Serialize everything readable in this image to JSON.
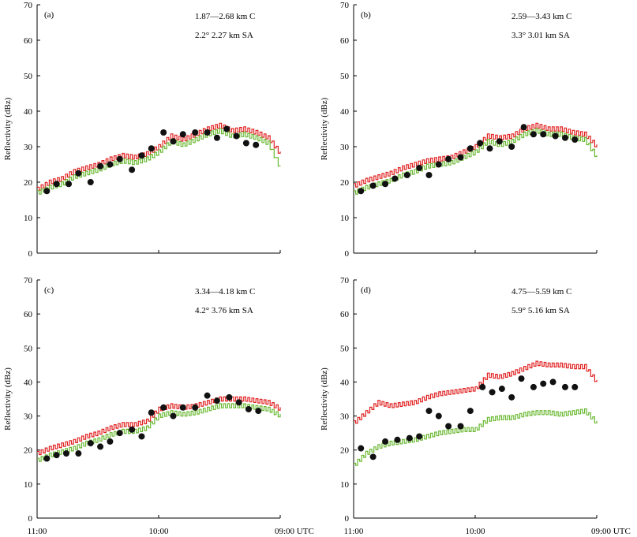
{
  "colors": {
    "c_band": "#e02020",
    "sa_band": "#6ab832",
    "points": "#111111"
  },
  "chart_data": [
    {
      "type": "line",
      "panel_label": "(a)",
      "legend_c_range": "1.87—2.68 km C",
      "legend_sa": "2.2°  2.27 km SA",
      "ylabel": "Reflectivity (dBz)",
      "ylim": [
        0,
        70
      ],
      "yticks": [
        "0",
        "10",
        "20",
        "30",
        "40",
        "50",
        "60",
        "70"
      ],
      "xticks": [
        "11:00",
        "10:00",
        "09:00"
      ],
      "xtick_labels": [
        "11:00",
        "10:00",
        "09:00 UTC"
      ],
      "x_unit": "UTC",
      "series": [
        {
          "name": "C",
          "x": [
            0,
            0.05,
            0.1,
            0.15,
            0.2,
            0.25,
            0.3,
            0.35,
            0.4,
            0.45,
            0.5,
            0.55,
            0.6,
            0.65,
            0.7,
            0.75,
            0.8,
            0.85,
            0.9,
            0.95,
            1.0
          ],
          "values": [
            18,
            20,
            21,
            23,
            24,
            25,
            26.5,
            27.5,
            27,
            28,
            30,
            33,
            32,
            33.5,
            35,
            36,
            34.5,
            35,
            34,
            32.5,
            28
          ]
        },
        {
          "name": "SA",
          "x": [
            0,
            0.05,
            0.1,
            0.15,
            0.2,
            0.25,
            0.3,
            0.35,
            0.4,
            0.45,
            0.5,
            0.55,
            0.6,
            0.65,
            0.7,
            0.75,
            0.8,
            0.85,
            0.9,
            0.95,
            1.0
          ],
          "values": [
            17,
            18.5,
            19.5,
            21.5,
            22.5,
            23.5,
            25,
            26,
            25.5,
            26.5,
            28.5,
            31.5,
            30.5,
            32,
            33.5,
            34.5,
            33,
            33.5,
            32.5,
            31,
            24
          ]
        },
        {
          "name": "points",
          "x": [
            0.04,
            0.08,
            0.13,
            0.17,
            0.22,
            0.26,
            0.3,
            0.34,
            0.39,
            0.43,
            0.47,
            0.52,
            0.56,
            0.6,
            0.65,
            0.7,
            0.74,
            0.78,
            0.82,
            0.86,
            0.9
          ],
          "values": [
            17.5,
            19.5,
            19.5,
            22.5,
            20,
            24.5,
            25,
            26.5,
            23.5,
            27.5,
            29.5,
            34,
            31.5,
            33.5,
            34,
            34,
            32.5,
            35,
            33,
            31,
            30.5
          ]
        }
      ]
    },
    {
      "type": "line",
      "panel_label": "(b)",
      "legend_c_range": "2.59—3.43 km C",
      "legend_sa": "3.3°  3.01 km SA",
      "ylabel": "Reflectivity (dBz)",
      "ylim": [
        0,
        70
      ],
      "yticks": [
        "0",
        "10",
        "20",
        "30",
        "40",
        "50",
        "60",
        "70"
      ],
      "xticks": [
        "11:00",
        "10:00",
        "09:00"
      ],
      "xtick_labels": [
        "11:00",
        "10:00",
        "09:00 UTC"
      ],
      "x_unit": "UTC",
      "series": [
        {
          "name": "C",
          "x": [
            0,
            0.05,
            0.1,
            0.15,
            0.2,
            0.25,
            0.3,
            0.35,
            0.4,
            0.45,
            0.5,
            0.55,
            0.6,
            0.65,
            0.7,
            0.75,
            0.8,
            0.85,
            0.9,
            0.95,
            1.0
          ],
          "values": [
            19,
            20.5,
            21.5,
            22.5,
            24,
            25,
            26,
            26.5,
            27,
            28.5,
            30,
            33,
            32.5,
            33,
            35,
            36,
            35,
            35,
            34,
            33.5,
            30
          ]
        },
        {
          "name": "SA",
          "x": [
            0,
            0.05,
            0.1,
            0.15,
            0.2,
            0.25,
            0.3,
            0.35,
            0.4,
            0.45,
            0.5,
            0.55,
            0.6,
            0.65,
            0.7,
            0.75,
            0.8,
            0.85,
            0.9,
            0.95,
            1.0
          ],
          "values": [
            17,
            18.5,
            19.5,
            20.5,
            22,
            23,
            24.5,
            25,
            25.5,
            27,
            28.5,
            31.5,
            30.5,
            31.5,
            33.5,
            34.5,
            33.5,
            33.5,
            32.5,
            32,
            27
          ]
        },
        {
          "name": "points",
          "x": [
            0.03,
            0.08,
            0.13,
            0.17,
            0.22,
            0.27,
            0.31,
            0.35,
            0.39,
            0.44,
            0.48,
            0.52,
            0.56,
            0.6,
            0.65,
            0.7,
            0.74,
            0.78,
            0.83,
            0.87,
            0.91
          ],
          "values": [
            17.5,
            19,
            19.5,
            21,
            22,
            24,
            22,
            25,
            26.5,
            27,
            29.5,
            31,
            29.5,
            31.5,
            30,
            35.5,
            33.5,
            33.5,
            33,
            32.5,
            32
          ]
        }
      ]
    },
    {
      "type": "line",
      "panel_label": "(c)",
      "legend_c_range": "3.34—4.18 km C",
      "legend_sa": "4.2°  3.76 km SA",
      "ylabel": "Reflectivity (dBz)",
      "ylim": [
        0,
        70
      ],
      "yticks": [
        "0",
        "10",
        "20",
        "30",
        "40",
        "50",
        "60",
        "70"
      ],
      "xticks": [
        "11:00",
        "10:00",
        "09:00"
      ],
      "xtick_labels": [
        "11:00",
        "10:00",
        "09:00 UTC"
      ],
      "x_unit": "UTC",
      "series": [
        {
          "name": "C",
          "x": [
            0,
            0.05,
            0.1,
            0.15,
            0.2,
            0.25,
            0.3,
            0.35,
            0.4,
            0.45,
            0.5,
            0.55,
            0.6,
            0.65,
            0.7,
            0.75,
            0.8,
            0.85,
            0.9,
            0.95,
            1.0
          ],
          "values": [
            19,
            20.5,
            21.5,
            22.5,
            24,
            25,
            26.5,
            27.5,
            27.5,
            28.5,
            32,
            33,
            32.5,
            33,
            34,
            35,
            35,
            35,
            34.5,
            34,
            32
          ]
        },
        {
          "name": "SA",
          "x": [
            0,
            0.05,
            0.1,
            0.15,
            0.2,
            0.25,
            0.3,
            0.35,
            0.4,
            0.45,
            0.5,
            0.55,
            0.6,
            0.65,
            0.7,
            0.75,
            0.8,
            0.85,
            0.9,
            0.95,
            1.0
          ],
          "values": [
            17,
            18.5,
            19.5,
            20.5,
            22,
            23,
            24.5,
            25.5,
            25.5,
            26.5,
            30,
            31,
            30.5,
            31,
            32,
            33,
            33,
            33,
            32.5,
            32,
            30
          ]
        },
        {
          "name": "points",
          "x": [
            0.04,
            0.08,
            0.12,
            0.17,
            0.22,
            0.26,
            0.3,
            0.34,
            0.39,
            0.43,
            0.47,
            0.52,
            0.56,
            0.6,
            0.65,
            0.7,
            0.74,
            0.79,
            0.83,
            0.87,
            0.91
          ],
          "values": [
            17.5,
            18.5,
            19,
            19,
            22,
            21,
            22.5,
            25,
            26,
            24,
            31,
            32.5,
            30,
            32.5,
            32.5,
            36,
            34.5,
            35.5,
            34,
            32,
            31.5
          ]
        }
      ]
    },
    {
      "type": "line",
      "panel_label": "(d)",
      "legend_c_range": "4.75—5.59 km C",
      "legend_sa": "5.9°  5.16 km SA",
      "ylabel": "Reflectivity (dBz)",
      "ylim": [
        0,
        70
      ],
      "yticks": [
        "0",
        "10",
        "20",
        "30",
        "40",
        "50",
        "60",
        "70"
      ],
      "xticks": [
        "11:00",
        "10:00",
        "09:00"
      ],
      "xtick_labels": [
        "11:00",
        "10:00",
        "09:00 UTC"
      ],
      "x_unit": "UTC",
      "series": [
        {
          "name": "C",
          "x": [
            0,
            0.05,
            0.1,
            0.15,
            0.2,
            0.25,
            0.3,
            0.35,
            0.4,
            0.45,
            0.5,
            0.55,
            0.6,
            0.65,
            0.7,
            0.75,
            0.8,
            0.85,
            0.9,
            0.95,
            1.0
          ],
          "values": [
            28,
            31,
            34,
            33,
            33.5,
            34,
            35.5,
            36.5,
            37,
            37.5,
            38,
            42,
            41.5,
            42.5,
            44,
            45.5,
            45,
            45,
            44.5,
            44.5,
            40
          ]
        },
        {
          "name": "SA",
          "x": [
            0,
            0.05,
            0.1,
            0.15,
            0.2,
            0.25,
            0.3,
            0.35,
            0.4,
            0.45,
            0.5,
            0.55,
            0.6,
            0.65,
            0.7,
            0.75,
            0.8,
            0.85,
            0.9,
            0.95,
            1.0
          ],
          "values": [
            15.5,
            19,
            21,
            22,
            22.5,
            23,
            24,
            25,
            25.5,
            26,
            26,
            29,
            29.5,
            29.5,
            30.5,
            31,
            31,
            30.5,
            31,
            31.5,
            28
          ]
        },
        {
          "name": "points",
          "x": [
            0.03,
            0.08,
            0.13,
            0.18,
            0.23,
            0.27,
            0.31,
            0.35,
            0.39,
            0.44,
            0.48,
            0.53,
            0.57,
            0.61,
            0.65,
            0.69,
            0.74,
            0.78,
            0.82,
            0.87,
            0.91
          ],
          "values": [
            20.5,
            18,
            22.5,
            23,
            23.5,
            24,
            31.5,
            30,
            27,
            27,
            31.5,
            38.5,
            37,
            38,
            35.5,
            41,
            38.5,
            39.5,
            40,
            38.5,
            38.5
          ]
        }
      ]
    }
  ]
}
